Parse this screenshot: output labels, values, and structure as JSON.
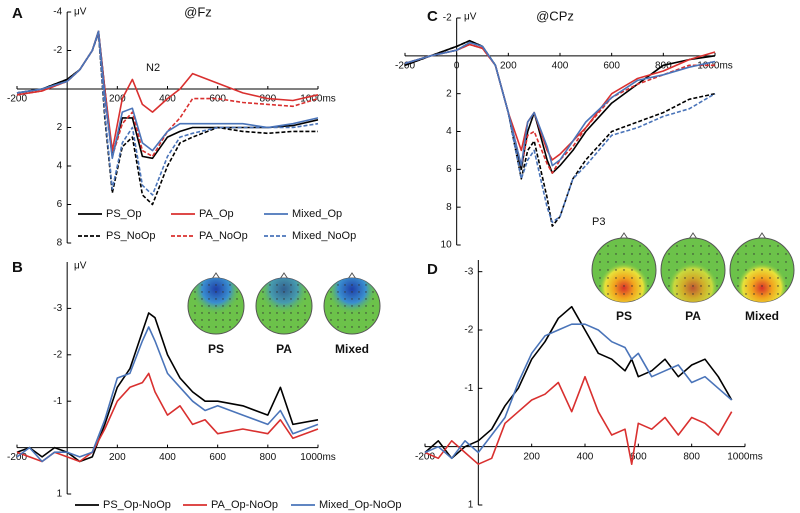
{
  "chart_data": [
    {
      "type": "line",
      "panel_label": "A",
      "title": "@Fz",
      "y_label": "μV",
      "annotations": [
        "N2"
      ],
      "y_reversed": true,
      "legend": "bottom",
      "x": [
        -200,
        -100,
        0,
        50,
        100,
        125,
        150,
        180,
        220,
        260,
        300,
        340,
        400,
        450,
        500,
        600,
        700,
        800,
        900,
        1000
      ],
      "xlim": [
        -200,
        1000
      ],
      "xticks": [
        -200,
        200,
        400,
        600,
        800,
        {
          "value": 1000,
          "label": "1000ms"
        }
      ],
      "ylim": [
        -4,
        8
      ],
      "yticks": [
        -4,
        -2,
        2,
        4,
        6,
        8
      ],
      "series": [
        {
          "name": "PS_Op",
          "color": "#000000",
          "style": "solid",
          "values": [
            0.2,
            0.0,
            -0.5,
            -1.0,
            -2.0,
            -3.0,
            0.0,
            3.5,
            1.5,
            1.5,
            3.5,
            3.6,
            2.5,
            2.2,
            2.0,
            2.0,
            2.0,
            2.0,
            1.9,
            1.6
          ]
        },
        {
          "name": "PS_NoOp",
          "color": "#000000",
          "style": "dashed",
          "values": [
            0.2,
            0.0,
            -0.5,
            -1.0,
            -2.0,
            -2.9,
            1.5,
            5.4,
            3.0,
            2.5,
            5.5,
            6.0,
            4.0,
            2.8,
            2.5,
            2.0,
            2.2,
            2.3,
            2.2,
            2.2
          ]
        },
        {
          "name": "PA_Op",
          "color": "#d9302f",
          "style": "solid",
          "values": [
            0.3,
            0.1,
            -0.4,
            -1.0,
            -2.0,
            -3.0,
            0.0,
            3.2,
            0.5,
            -0.5,
            0.8,
            1.2,
            0.5,
            0.0,
            -0.8,
            -0.3,
            0.2,
            0.5,
            0.6,
            0.3
          ]
        },
        {
          "name": "PA_NoOp",
          "color": "#d9302f",
          "style": "dashed",
          "values": [
            0.3,
            0.1,
            -0.4,
            -1.0,
            -2.0,
            -2.9,
            0.5,
            3.5,
            1.8,
            1.2,
            3.2,
            3.5,
            2.2,
            1.5,
            0.5,
            0.5,
            0.7,
            0.8,
            0.9,
            0.5
          ]
        },
        {
          "name": "Mixed_Op",
          "color": "#4a74b9",
          "style": "solid",
          "values": [
            0.2,
            0.0,
            -0.4,
            -1.0,
            -2.0,
            -3.0,
            0.3,
            3.6,
            1.2,
            1.0,
            2.8,
            3.2,
            2.2,
            1.8,
            1.8,
            1.8,
            1.8,
            2.0,
            1.8,
            1.5
          ]
        },
        {
          "name": "Mixed_NoOp",
          "color": "#4a74b9",
          "style": "dashed",
          "values": [
            0.2,
            0.0,
            -0.4,
            -1.0,
            -2.0,
            -2.9,
            1.2,
            5.2,
            2.8,
            2.0,
            5.0,
            5.5,
            3.5,
            2.5,
            2.3,
            2.0,
            2.0,
            2.0,
            2.0,
            1.8
          ]
        }
      ]
    },
    {
      "type": "line",
      "panel_label": "B",
      "y_label": "μV",
      "y_reversed": true,
      "legend": "bottom",
      "topomap_labels": [
        "PS",
        "PA",
        "Mixed"
      ],
      "x": [
        -200,
        -150,
        -100,
        -50,
        0,
        50,
        100,
        150,
        200,
        250,
        300,
        325,
        350,
        400,
        450,
        500,
        550,
        600,
        700,
        800,
        850,
        900,
        1000
      ],
      "xlim": [
        -200,
        1000
      ],
      "xticks": [
        -200,
        200,
        400,
        600,
        800,
        {
          "value": 1000,
          "label": "1000ms"
        }
      ],
      "ylim": [
        -4,
        1
      ],
      "yticks": [
        -3,
        -2,
        -1,
        1
      ],
      "series": [
        {
          "name": "PS_Op-NoOp",
          "color": "#000000",
          "style": "solid",
          "values": [
            0.1,
            0,
            0.2,
            0,
            0.1,
            0.3,
            0.2,
            -0.5,
            -1.3,
            -1.7,
            -2.5,
            -2.9,
            -2.8,
            -2,
            -1.5,
            -1.2,
            -1,
            -1,
            -0.9,
            -0.7,
            -1.3,
            -0.5,
            -0.6
          ]
        },
        {
          "name": "PA_Op-NoOp",
          "color": "#d9302f",
          "style": "solid",
          "values": [
            0.1,
            0.2,
            0.3,
            0.1,
            0.2,
            0.3,
            0.1,
            -0.4,
            -1.0,
            -1.3,
            -1.4,
            -1.6,
            -1.2,
            -0.7,
            -0.9,
            -0.5,
            -0.6,
            -0.3,
            -0.4,
            -0.3,
            -0.6,
            -0.2,
            -0.4
          ]
        },
        {
          "name": "Mixed_Op-NoOp",
          "color": "#4a74b9",
          "style": "solid",
          "values": [
            0.2,
            0,
            0.3,
            0.1,
            0.1,
            0.2,
            0.1,
            -0.6,
            -1.5,
            -1.6,
            -2.3,
            -2.6,
            -2.3,
            -1.6,
            -1.3,
            -1,
            -0.8,
            -0.9,
            -0.7,
            -0.5,
            -0.8,
            -0.3,
            -0.5
          ]
        }
      ]
    },
    {
      "type": "line",
      "panel_label": "C",
      "title": "@CPz",
      "y_label": "μV",
      "annotations": [
        "P3"
      ],
      "y_reversed": true,
      "x": [
        -200,
        -100,
        0,
        50,
        100,
        150,
        200,
        250,
        275,
        300,
        350,
        370,
        400,
        450,
        500,
        600,
        700,
        800,
        900,
        1000
      ],
      "xlim": [
        -200,
        1000
      ],
      "xticks": [
        -200,
        0,
        200,
        400,
        600,
        800,
        {
          "value": 1000,
          "label": "1000ms"
        }
      ],
      "ylim": [
        -2,
        10
      ],
      "yticks": [
        -2,
        2,
        4,
        6,
        8,
        10
      ],
      "series": [
        {
          "color": "#000000",
          "style": "solid",
          "values": [
            0.5,
            0,
            -0.5,
            -0.8,
            -0.5,
            0.5,
            3,
            6,
            4,
            3,
            5.5,
            6.2,
            5.8,
            5,
            4,
            2.5,
            1.5,
            0.5,
            0.2,
            0
          ]
        },
        {
          "color": "#000000",
          "style": "dashed",
          "values": [
            0.5,
            0,
            -0.5,
            -0.8,
            -0.5,
            0.5,
            3,
            6.5,
            5,
            4.5,
            7.5,
            9,
            8.5,
            6.5,
            5.5,
            4,
            3.5,
            3,
            2.3,
            2
          ]
        },
        {
          "color": "#d9302f",
          "style": "solid",
          "values": [
            0.4,
            0,
            -0.3,
            -0.6,
            -0.4,
            0.5,
            3,
            5,
            3.5,
            3,
            5,
            5.5,
            5.2,
            4.5,
            3.8,
            2,
            1.2,
            0.8,
            0.2,
            -0.2
          ]
        },
        {
          "color": "#d9302f",
          "style": "dashed",
          "values": [
            0.4,
            0,
            -0.3,
            -0.6,
            -0.4,
            0.5,
            3,
            5.8,
            4.2,
            4,
            5.7,
            6.2,
            5.5,
            4.8,
            3.8,
            2.2,
            1.5,
            1,
            0.5,
            0.5
          ]
        },
        {
          "color": "#4a74b9",
          "style": "solid",
          "values": [
            0.4,
            0,
            -0.3,
            -0.7,
            -0.5,
            0.5,
            3,
            5.8,
            3.5,
            3,
            4.8,
            5.8,
            5.5,
            4.5,
            3.5,
            2.2,
            1.3,
            1,
            0.6,
            0.3
          ]
        },
        {
          "color": "#4a74b9",
          "style": "dashed",
          "values": [
            0.4,
            0,
            -0.3,
            -0.7,
            -0.5,
            0.5,
            3,
            6.5,
            5.5,
            5,
            8,
            8.8,
            8.5,
            6.5,
            5.8,
            4.2,
            3.8,
            3.2,
            2.8,
            2
          ]
        }
      ]
    },
    {
      "type": "line",
      "panel_label": "D",
      "y_reversed": true,
      "topomap_labels": [
        "PS",
        "PA",
        "Mixed"
      ],
      "x": [
        -200,
        -150,
        -100,
        -50,
        0,
        50,
        100,
        150,
        200,
        250,
        300,
        350,
        400,
        450,
        500,
        550,
        575,
        600,
        650,
        700,
        750,
        800,
        850,
        900,
        950
      ],
      "xlim": [
        -200,
        1000
      ],
      "xticks": [
        -200,
        200,
        400,
        600,
        800,
        {
          "value": 1000,
          "label": "1000ms"
        }
      ],
      "ylim": [
        -3.2,
        1
      ],
      "yticks": [
        -3,
        -2,
        -1,
        1
      ],
      "series": [
        {
          "color": "#000000",
          "style": "solid",
          "values": [
            0.1,
            -0.1,
            0.2,
            0,
            -0.1,
            -0.3,
            -0.7,
            -1,
            -1.5,
            -1.8,
            -2.2,
            -2.4,
            -2.0,
            -1.6,
            -1.5,
            -1.3,
            -1.5,
            -1.2,
            -1.3,
            -1.5,
            -1.2,
            -1.4,
            -1.5,
            -1.2,
            -0.8
          ]
        },
        {
          "color": "#d9302f",
          "style": "solid",
          "values": [
            0.1,
            0.2,
            -0.1,
            0.1,
            0.3,
            0.2,
            -0.4,
            -0.6,
            -0.8,
            -0.9,
            -1.1,
            -0.6,
            -1.2,
            -0.6,
            -0.2,
            -0.3,
            0.3,
            -0.4,
            -0.3,
            -0.5,
            -0.2,
            -0.5,
            -0.4,
            -0.2,
            -0.6
          ]
        },
        {
          "color": "#4a74b9",
          "style": "solid",
          "values": [
            0.1,
            0,
            0.2,
            -0.1,
            0.1,
            -0.2,
            -0.5,
            -1.1,
            -1.6,
            -1.9,
            -2.0,
            -2.1,
            -2.1,
            -2.0,
            -1.8,
            -1.7,
            -1.5,
            -1.6,
            -1.2,
            -1.3,
            -1.4,
            -1.1,
            -1.2,
            -1.0,
            -0.8
          ]
        }
      ]
    }
  ]
}
